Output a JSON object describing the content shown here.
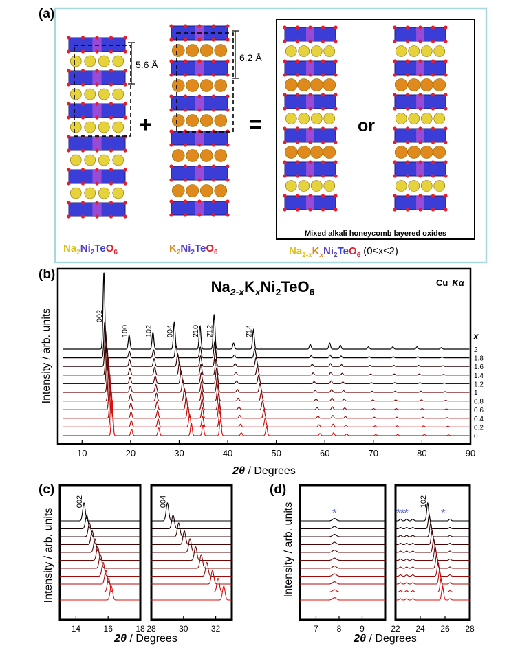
{
  "panel_a": {
    "label": "(a)",
    "spacing_left": "5.6 Å",
    "spacing_right": "6.2 Å",
    "plus": "+",
    "equals": "=",
    "or_text": "or",
    "mixed_caption": "Mixed alkali honeycomb layered oxides",
    "formula_na": {
      "Na": "Na",
      "s2a": "2",
      "Ni": "Ni",
      "s2b": "2",
      "Te": "Te",
      "O": "O",
      "s6": "6"
    },
    "formula_k": {
      "K": "K",
      "s2a": "2",
      "Ni": "Ni",
      "s2b": "2",
      "Te": "Te",
      "O": "O",
      "s6": "6"
    },
    "formula_mix": {
      "Na": "Na",
      "sub1": "2-x",
      "K": "K",
      "sub2": "x",
      "Ni": "Ni",
      "s2": "2",
      "Te": "Te",
      "O": "O",
      "s6": "6",
      "range": "(0≤x≤2)"
    },
    "colors": {
      "na_atom": "#e6d23a",
      "k_atom": "#e0891c",
      "octahedra": "#3a3ed6",
      "te": "#a24cd6",
      "oxygen": "#e02030",
      "frame": "#a9d8dc"
    }
  },
  "panel_b": {
    "label": "(b)",
    "title": {
      "Na": "Na",
      "sub1": "2-x",
      "K": "K",
      "sub2": "x",
      "rest": "Ni",
      "s2": "2",
      "Te": "TeO",
      "s6": "6"
    },
    "source": "Cu",
    "source_line": "Kα",
    "ylabel": "Intensity / arb. units",
    "xlabel_theta": "2θ",
    "xlabel_unit": " / Degrees",
    "x_axis_symbol": "x"
  },
  "panel_c": {
    "label": "(c)",
    "ylabel": "Intensity / arb. units",
    "xlabel_theta": "2θ",
    "xlabel_unit": " / Degrees"
  },
  "panel_d": {
    "label": "(d)",
    "ylabel": "Intensity / arb. units",
    "xlabel_theta": "2θ",
    "xlabel_unit": " / Degrees",
    "star_marker": "*",
    "triple_star": "***"
  },
  "chart_data": [
    {
      "type": "line",
      "panel": "b",
      "xlim": [
        5,
        90
      ],
      "x_ticks": [
        10,
        20,
        30,
        40,
        50,
        60,
        70,
        80,
        90
      ],
      "series_labels": [
        "2",
        "1.8",
        "1.6",
        "1.4",
        "1.2",
        "1",
        "0.8",
        "0.6",
        "0.4",
        "0.2",
        "0"
      ],
      "peak_labels": [
        {
          "label": "002",
          "x": 14.5
        },
        {
          "label": "100",
          "x": 19.7
        },
        {
          "label": "102",
          "x": 24.6
        },
        {
          "label": "004",
          "x": 29.0
        },
        {
          "label": "2̄10",
          "x": 34.3
        },
        {
          "label": "2̄12",
          "x": 37.2
        },
        {
          "label": "2̄14",
          "x": 45.3
        }
      ],
      "peaks_x2": [
        14.5,
        19.7,
        24.6,
        29.0,
        34.3,
        37.2,
        41.2,
        45.3,
        57.0,
        61.0,
        63.2,
        69.0,
        74.0,
        79.0,
        84.0
      ],
      "peaks_x0": [
        16.2,
        20.2,
        25.8,
        32.5,
        34.9,
        38.5,
        42.8,
        48.0,
        59.0,
        61.8,
        64.5,
        70.5,
        75.0,
        80.5,
        85.5
      ],
      "colors": {
        "x2": "#000000",
        "x0": "#e01010"
      }
    },
    {
      "type": "line",
      "panel": "c-left",
      "xlim": [
        13,
        18
      ],
      "x_ticks": [
        14,
        16,
        18
      ],
      "peak_label": "002",
      "peak_x2": 14.5,
      "peak_x0": 16.2
    },
    {
      "type": "line",
      "panel": "c-right",
      "xlim": [
        28,
        33
      ],
      "x_ticks": [
        28,
        30,
        32
      ],
      "peak_label": "004",
      "peak_x2": 29.0,
      "peak_x0": 32.5
    },
    {
      "type": "line",
      "panel": "d-left",
      "xlim": [
        6.3,
        10
      ],
      "x_ticks": [
        7,
        8,
        9
      ],
      "star_x": 7.8
    },
    {
      "type": "line",
      "panel": "d-right",
      "xlim": [
        22,
        28
      ],
      "x_ticks": [
        22,
        24,
        26,
        28
      ],
      "peak_label": "102",
      "peak_x2": 24.6,
      "peak_x0": 25.8,
      "stars_x": [
        22.4,
        22.9,
        23.4,
        26.4
      ]
    }
  ]
}
